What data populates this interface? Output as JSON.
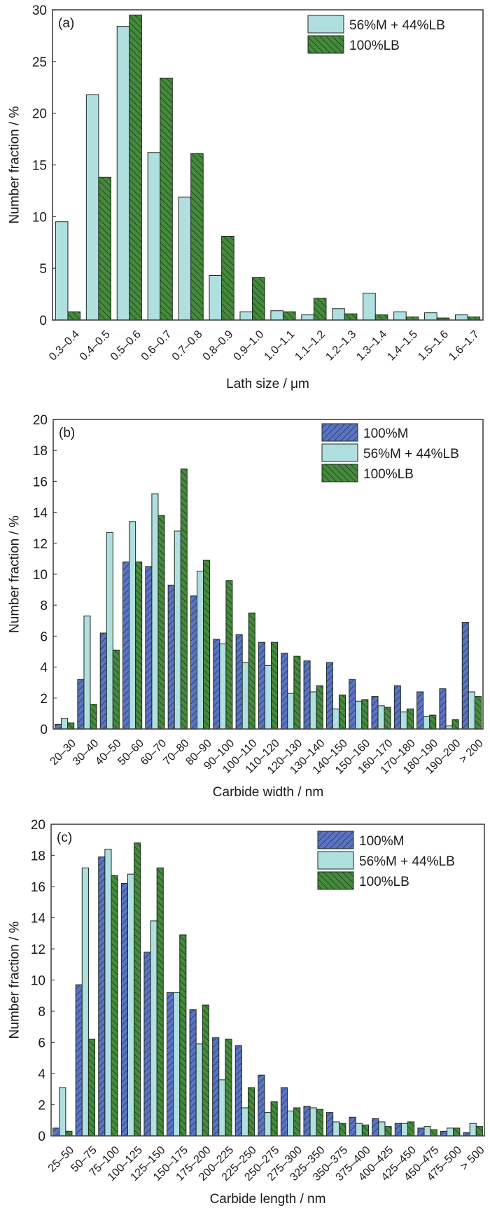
{
  "colors": {
    "100%M": "#5b74c2",
    "56%M + 44%LB": "#b0dfe0",
    "100%LB": "#468a3d",
    "axis": "#444444",
    "bar_edge": "#1c2a1c"
  },
  "chart_data": [
    {
      "type": "bar",
      "panel": "(a)",
      "title": "",
      "xlabel": "Lath size / μm",
      "ylabel": "Number fraction / %",
      "ylim": [
        0,
        30
      ],
      "yticks": [
        0,
        5,
        10,
        15,
        20,
        25,
        30
      ],
      "grid": false,
      "legend": "top-right",
      "categories": [
        "0.3–0.4",
        "0.4–0.5",
        "0.5–0.6",
        "0.6–0.7",
        "0.7–0.8",
        "0.8–0.9",
        "0.9–1.0",
        "1.0–1.1",
        "1.1–1.2",
        "1.2–1.3",
        "1.3–1.4",
        "1.4–1.5",
        "1.5–1.6",
        "1.6–1.7"
      ],
      "series": [
        {
          "name": "56%M + 44%LB",
          "pattern": "none",
          "values": [
            9.5,
            21.8,
            28.4,
            16.2,
            11.9,
            4.3,
            0.8,
            0.9,
            0.5,
            1.1,
            2.6,
            0.8,
            0.7,
            0.5
          ]
        },
        {
          "name": "100%LB",
          "pattern": "backslash",
          "values": [
            0.8,
            13.8,
            29.5,
            23.4,
            16.1,
            8.1,
            4.1,
            0.8,
            2.1,
            0.6,
            0.5,
            0.3,
            0.2,
            0.3
          ]
        }
      ]
    },
    {
      "type": "bar",
      "panel": "(b)",
      "title": "",
      "xlabel": "Carbide width / nm",
      "ylabel": "Number fraction / %",
      "ylim": [
        0,
        20
      ],
      "yticks": [
        0,
        2,
        4,
        6,
        8,
        10,
        12,
        14,
        16,
        18,
        20
      ],
      "grid": false,
      "legend": "top-right",
      "categories": [
        "20–30",
        "30–40",
        "40–50",
        "50–60",
        "60–70",
        "70–80",
        "80–90",
        "90–100",
        "100–110",
        "110–120",
        "120–130",
        "130–140",
        "140–150",
        "150–160",
        "160–170",
        "170–180",
        "180–190",
        "190–200",
        "> 200"
      ],
      "series": [
        {
          "name": "100%M",
          "pattern": "slash",
          "values": [
            0.3,
            3.2,
            6.2,
            10.8,
            10.5,
            9.3,
            8.6,
            5.8,
            6.1,
            5.6,
            4.9,
            4.4,
            4.3,
            3.2,
            2.1,
            2.8,
            2.4,
            2.6,
            6.9
          ]
        },
        {
          "name": "56%M + 44%LB",
          "pattern": "none",
          "values": [
            0.7,
            7.3,
            12.7,
            13.4,
            15.2,
            12.8,
            10.2,
            5.5,
            4.3,
            4.1,
            2.3,
            2.4,
            1.3,
            1.8,
            1.5,
            1.1,
            0.8,
            0.2,
            2.4
          ]
        },
        {
          "name": "100%LB",
          "pattern": "backslash",
          "values": [
            0.4,
            1.6,
            5.1,
            10.8,
            13.8,
            16.8,
            10.9,
            9.6,
            7.5,
            5.6,
            4.7,
            2.8,
            2.2,
            1.9,
            1.4,
            1.3,
            0.9,
            0.6,
            2.1
          ]
        }
      ]
    },
    {
      "type": "bar",
      "panel": "(c)",
      "title": "",
      "xlabel": "Carbide length / nm",
      "ylabel": "Number fraction / %",
      "ylim": [
        0,
        20
      ],
      "yticks": [
        0,
        2,
        4,
        6,
        8,
        10,
        12,
        14,
        16,
        18,
        20
      ],
      "grid": false,
      "legend": "top-right",
      "categories": [
        "25–50",
        "50–75",
        "75–100",
        "100–125",
        "125–150",
        "150–175",
        "175–200",
        "200–225",
        "225–250",
        "250–275",
        "275–300",
        "325–350",
        "350–375",
        "375–400",
        "400–425",
        "425–450",
        "450–475",
        "475–500",
        "> 500"
      ],
      "series": [
        {
          "name": "100%M",
          "pattern": "slash",
          "values": [
            0.5,
            9.7,
            17.9,
            16.2,
            11.8,
            9.2,
            8.1,
            6.3,
            5.8,
            3.9,
            3.1,
            1.9,
            1.5,
            1.2,
            1.1,
            0.8,
            0.5,
            0.3,
            0.2
          ]
        },
        {
          "name": "56%M + 44%LB",
          "pattern": "none",
          "values": [
            3.1,
            17.2,
            18.4,
            16.8,
            13.8,
            9.2,
            5.9,
            3.6,
            1.8,
            1.5,
            1.6,
            1.8,
            0.9,
            0.8,
            0.9,
            0.8,
            0.6,
            0.5,
            0.8
          ]
        },
        {
          "name": "100%LB",
          "pattern": "backslash",
          "values": [
            0.3,
            6.2,
            16.7,
            18.8,
            17.2,
            12.9,
            8.4,
            6.2,
            3.1,
            2.2,
            1.8,
            1.7,
            0.8,
            0.7,
            0.6,
            0.9,
            0.4,
            0.5,
            0.6
          ]
        }
      ]
    }
  ]
}
